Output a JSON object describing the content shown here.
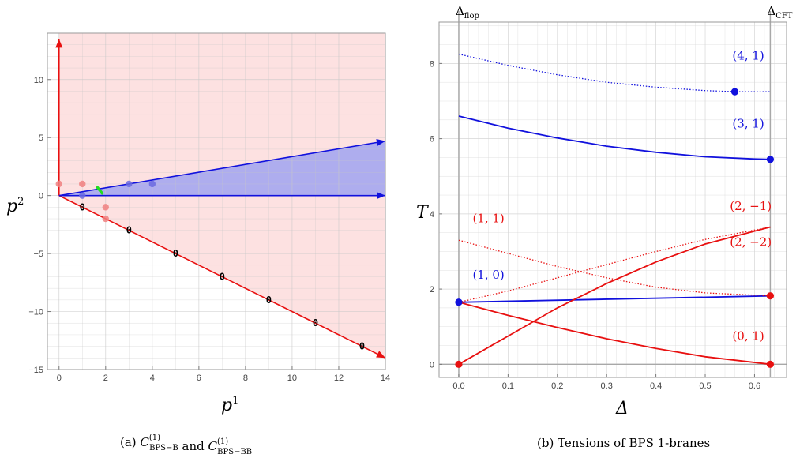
{
  "chart_data": [
    {
      "type": "scatter",
      "xlabel": "p",
      "xlabel_sup": "1",
      "ylabel": "p",
      "ylabel_sup": "2",
      "xlim": [
        -0.5,
        14
      ],
      "ylim": [
        -15,
        14
      ],
      "xticks": [
        0,
        2,
        4,
        6,
        8,
        10,
        12,
        14
      ],
      "yticks": [
        -15,
        -10,
        -5,
        0,
        5,
        10
      ],
      "ytick_labels": [
        "−15",
        "−10",
        "−5",
        "0",
        "5",
        "10"
      ],
      "grid": true,
      "caption_prefix": "(a) ",
      "caption_joiner": " and ",
      "caption_terms": [
        {
          "symbol": "C",
          "sup": "(1)",
          "sub": "BPS−B"
        },
        {
          "symbol": "C",
          "sup": "(1)",
          "sub": "BPS−BB"
        }
      ],
      "regions": [
        {
          "name": "red-cone",
          "color": "#fde1e1",
          "boundary": [
            [
              0,
              14
            ],
            [
              0,
              0
            ],
            [
              14,
              -14
            ]
          ]
        },
        {
          "name": "blue-cone",
          "color": "#aaaaee",
          "boundary": [
            [
              14,
              0
            ],
            [
              0,
              0
            ],
            [
              14,
              4.7
            ]
          ]
        }
      ],
      "arrows": [
        {
          "color": "#e81010",
          "from": [
            0,
            0
          ],
          "to": [
            0,
            13.5
          ]
        },
        {
          "color": "#e81010",
          "from": [
            0,
            0
          ],
          "to": [
            14,
            -14
          ]
        },
        {
          "color": "#1111dd",
          "from": [
            0,
            0
          ],
          "to": [
            14,
            0
          ]
        },
        {
          "color": "#1111dd",
          "from": [
            0,
            0
          ],
          "to": [
            14,
            4.7
          ]
        }
      ],
      "red_points": [
        [
          0,
          1
        ],
        [
          1,
          1
        ],
        [
          2,
          -1
        ],
        [
          2,
          -2
        ]
      ],
      "blue_points": [
        [
          1,
          0
        ],
        [
          3,
          1
        ],
        [
          4,
          1
        ]
      ],
      "green_segment": [
        [
          1.65,
          0.7
        ],
        [
          1.85,
          0.2
        ]
      ],
      "zero_labels": [
        {
          "text": "0",
          "x": 1,
          "y": -1
        },
        {
          "text": "0",
          "x": 3,
          "y": -3
        },
        {
          "text": "0",
          "x": 5,
          "y": -5
        },
        {
          "text": "0",
          "x": 7,
          "y": -7
        },
        {
          "text": "0",
          "x": 9,
          "y": -9
        },
        {
          "text": "0",
          "x": 11,
          "y": -11
        },
        {
          "text": "0",
          "x": 13,
          "y": -13
        }
      ]
    },
    {
      "type": "line",
      "xlabel": "Δ",
      "ylabel": "T",
      "xlim": [
        -0.04,
        0.665
      ],
      "ylim": [
        -0.35,
        9.1
      ],
      "xticks": [
        0.0,
        0.1,
        0.2,
        0.3,
        0.4,
        0.5,
        0.6
      ],
      "xtick_labels": [
        "0.0",
        "0.1",
        "0.2",
        "0.3",
        "0.4",
        "0.5",
        "0.6"
      ],
      "yticks": [
        0,
        2,
        4,
        6,
        8
      ],
      "grid": true,
      "vlines": [
        {
          "x": 0,
          "label": "Δ",
          "label_sub": "flop"
        },
        {
          "x": 0.632,
          "label": "Δ",
          "label_sub": "CFT"
        }
      ],
      "caption": "(b) Tensions of BPS 1-branes",
      "series": [
        {
          "name": "(4, 1)",
          "color": "#1111dd",
          "dash": "dotted",
          "x": [
            0,
            0.1,
            0.2,
            0.3,
            0.4,
            0.5,
            0.56,
            0.632
          ],
          "y": [
            8.25,
            7.95,
            7.7,
            7.5,
            7.37,
            7.28,
            7.25,
            7.25
          ]
        },
        {
          "name": "(3, 1)",
          "color": "#1111dd",
          "dash": "solid",
          "x": [
            0,
            0.1,
            0.2,
            0.3,
            0.4,
            0.5,
            0.6,
            0.632
          ],
          "y": [
            6.6,
            6.28,
            6.02,
            5.8,
            5.64,
            5.52,
            5.46,
            5.45
          ]
        },
        {
          "name": "(1, 0)",
          "color": "#1111dd",
          "dash": "solid",
          "x": [
            0,
            0.632
          ],
          "y": [
            1.65,
            1.82
          ]
        },
        {
          "name": "(1, 1)",
          "color": "#e81010",
          "dash": "dotted",
          "x": [
            0,
            0.1,
            0.2,
            0.3,
            0.4,
            0.5,
            0.632
          ],
          "y": [
            3.3,
            2.95,
            2.6,
            2.3,
            2.05,
            1.9,
            1.82
          ]
        },
        {
          "name": "(2, −2)",
          "color": "#e81010",
          "dash": "dotted",
          "x": [
            0,
            0.1,
            0.2,
            0.3,
            0.4,
            0.5,
            0.632
          ],
          "y": [
            1.65,
            1.95,
            2.3,
            2.65,
            3.0,
            3.32,
            3.65
          ]
        },
        {
          "name": "(2, −1)",
          "color": "#e81010",
          "dash": "solid",
          "x": [
            0,
            0.1,
            0.2,
            0.3,
            0.4,
            0.5,
            0.632
          ],
          "y": [
            0,
            0.75,
            1.5,
            2.15,
            2.72,
            3.2,
            3.65
          ]
        },
        {
          "name": "(0, 1)",
          "color": "#e81010",
          "dash": "solid",
          "x": [
            0,
            0.1,
            0.2,
            0.3,
            0.4,
            0.5,
            0.632
          ],
          "y": [
            1.65,
            1.3,
            0.98,
            0.68,
            0.42,
            0.2,
            0
          ]
        }
      ],
      "points": [
        {
          "color": "#1111dd",
          "x": 0.56,
          "y": 7.25
        },
        {
          "color": "#1111dd",
          "x": 0.632,
          "y": 5.45
        },
        {
          "color": "#1111dd",
          "x": 0,
          "y": 1.65
        },
        {
          "color": "#e81010",
          "x": 0.632,
          "y": 1.82
        },
        {
          "color": "#e81010",
          "x": 0,
          "y": 0
        },
        {
          "color": "#e81010",
          "x": 0.632,
          "y": 0
        }
      ],
      "annotations": [
        {
          "text": "(4, 1)",
          "color": "#1111dd",
          "x": 0.555,
          "y": 8.1
        },
        {
          "text": "(3, 1)",
          "color": "#1111dd",
          "x": 0.555,
          "y": 6.3
        },
        {
          "text": "(1, 0)",
          "color": "#1111dd",
          "x": 0.028,
          "y": 2.28
        },
        {
          "text": "(1, 1)",
          "color": "#e81010",
          "x": 0.028,
          "y": 3.78
        },
        {
          "text": "(2, −1)",
          "color": "#e81010",
          "x": 0.55,
          "y": 4.1
        },
        {
          "text": "(2, −2)",
          "color": "#e81010",
          "x": 0.55,
          "y": 3.15
        },
        {
          "text": "(0, 1)",
          "color": "#e81010",
          "x": 0.555,
          "y": 0.65
        }
      ]
    }
  ]
}
